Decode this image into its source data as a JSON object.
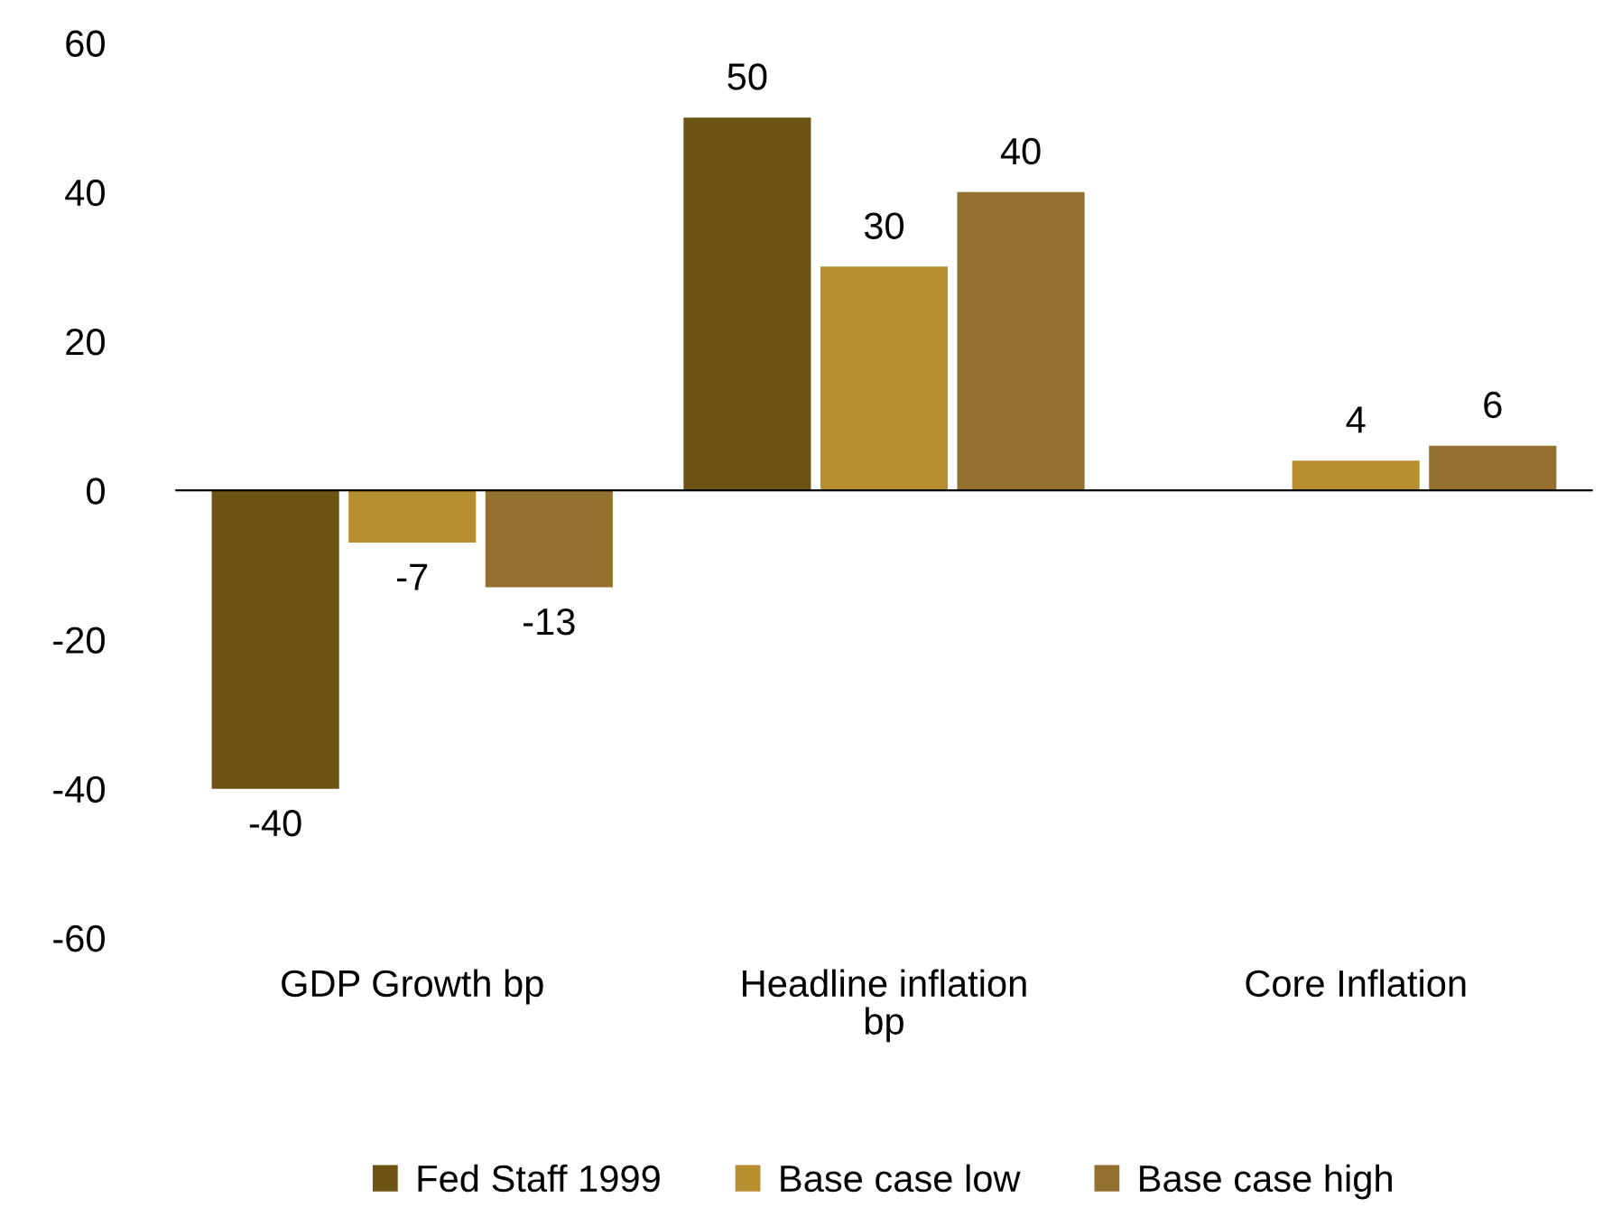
{
  "chart_data": {
    "type": "bar",
    "categories": [
      "GDP Growth bp",
      "Headline inflation bp",
      "Core Inflation"
    ],
    "series": [
      {
        "name": "Fed Staff 1999",
        "color": "#6e5414",
        "values": [
          -40,
          50,
          null
        ]
      },
      {
        "name": "Base case low",
        "color": "#b88f30",
        "values": [
          -7,
          30,
          4
        ]
      },
      {
        "name": "Base case high",
        "color": "#93702e",
        "values": [
          -13,
          40,
          6
        ]
      }
    ],
    "ylim": [
      -60,
      60
    ],
    "yticks": [
      -60,
      -40,
      -20,
      0,
      20,
      40,
      60
    ],
    "data_labels": true,
    "legend": "bottom"
  }
}
